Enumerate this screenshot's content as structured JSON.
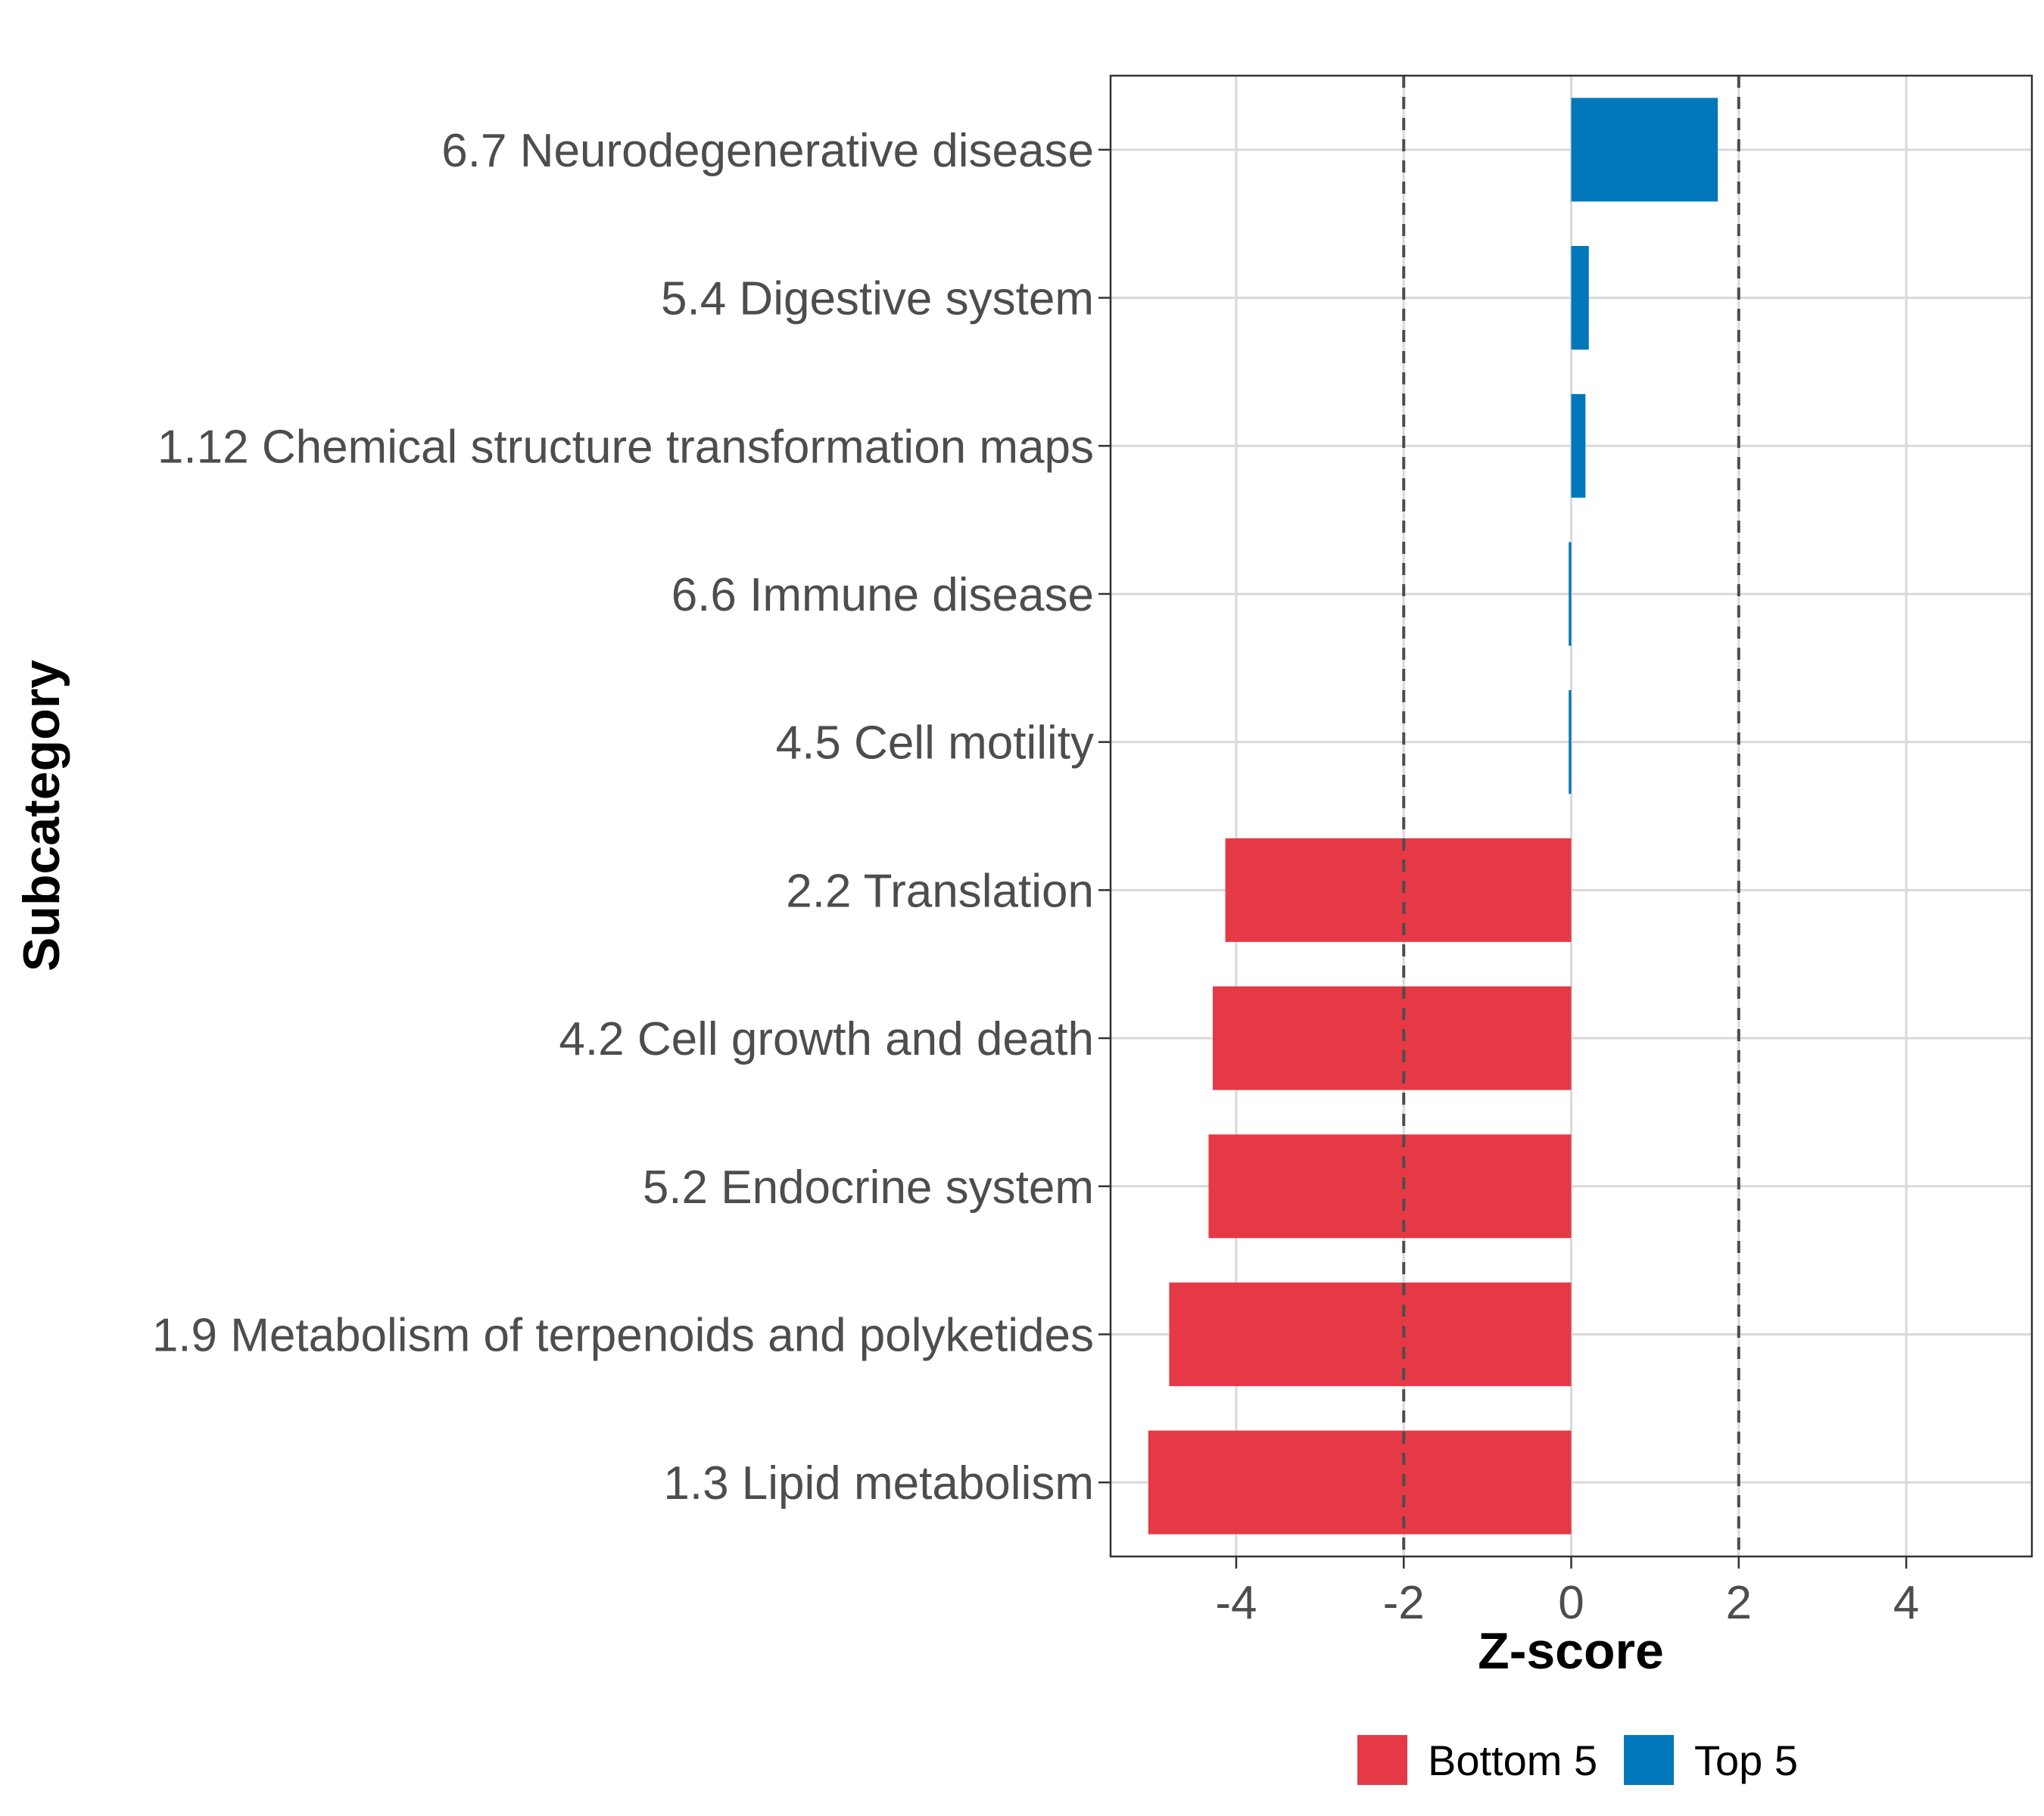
{
  "chart_data": {
    "type": "bar",
    "orientation": "horizontal",
    "xlabel": "Z-score",
    "ylabel": "Subcategory",
    "xlim": [
      -5.5,
      5.5
    ],
    "xticks": [
      -4,
      -2,
      0,
      2,
      4
    ],
    "xtick_labels": [
      "-4",
      "-2",
      "0",
      "2",
      "4"
    ],
    "reference_lines": [
      -2,
      2
    ],
    "grid": true,
    "legend_position": "bottom",
    "categories": [
      "6.7 Neurodegenerative disease",
      "5.4 Digestive system",
      "1.12 Chemical structure transformation maps",
      "6.6 Immune disease",
      "4.5 Cell motility",
      "2.2 Translation",
      "4.2 Cell growth and death",
      "5.2 Endocrine system",
      "1.9 Metabolism of terpenoids and polyketides",
      "1.3 Lipid metabolism"
    ],
    "values": [
      1.75,
      0.21,
      0.17,
      -0.03,
      -0.03,
      -4.13,
      -4.28,
      -4.33,
      -4.8,
      -5.05
    ],
    "groups": [
      "Top 5",
      "Top 5",
      "Top 5",
      "Top 5",
      "Top 5",
      "Bottom 5",
      "Bottom 5",
      "Bottom 5",
      "Bottom 5",
      "Bottom 5"
    ],
    "legend": [
      {
        "name": "Bottom 5",
        "color": "#e63946"
      },
      {
        "name": "Top 5",
        "color": "#0077bb"
      }
    ]
  }
}
